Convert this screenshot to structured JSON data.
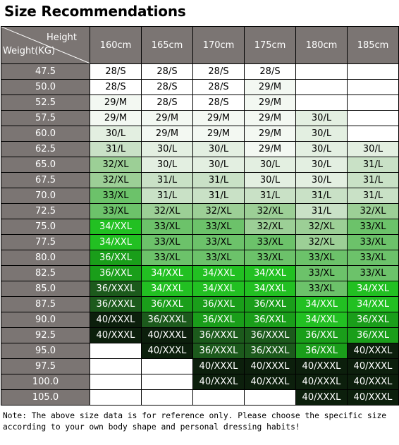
{
  "title": "Size Recommendations",
  "corner": {
    "height_label": "Height",
    "weight_label": "Weight(KG)"
  },
  "heights": [
    "160cm",
    "165cm",
    "170cm",
    "175cm",
    "180cm",
    "185cm"
  ],
  "rows": [
    {
      "weight": "47.5",
      "sizes": [
        "28/S",
        "28/S",
        "28/S",
        "28/S",
        null,
        null
      ]
    },
    {
      "weight": "50.0",
      "sizes": [
        "28/S",
        "28/S",
        "28/S",
        "29/M",
        null,
        null
      ]
    },
    {
      "weight": "52.5",
      "sizes": [
        "29/M",
        "28/S",
        "28/S",
        "29/M",
        null,
        null
      ]
    },
    {
      "weight": "57.5",
      "sizes": [
        "29/M",
        "29/M",
        "29/M",
        "29/M",
        "30/L",
        null
      ]
    },
    {
      "weight": "60.0",
      "sizes": [
        "30/L",
        "29/M",
        "29/M",
        "29/M",
        "30/L",
        null
      ]
    },
    {
      "weight": "62.5",
      "sizes": [
        "31/L",
        "30/L",
        "30/L",
        "29/M",
        "30/L",
        "30/L"
      ]
    },
    {
      "weight": "65.0",
      "sizes": [
        "32/XL",
        "30/L",
        "30/L",
        "30/L",
        "30/L",
        "31/L"
      ]
    },
    {
      "weight": "67.5",
      "sizes": [
        "32/XL",
        "31/L",
        "31/L",
        "30/L",
        "30/L",
        "31/L"
      ]
    },
    {
      "weight": "70.0",
      "sizes": [
        "33/XL",
        "31/L",
        "31/L",
        "31/L",
        "31/L",
        "31/L"
      ]
    },
    {
      "weight": "72.5",
      "sizes": [
        "33/XL",
        "32/XL",
        "32/XL",
        "32/XL",
        "31/L",
        "32/XL"
      ]
    },
    {
      "weight": "75.0",
      "sizes": [
        "34/XXL",
        "33/XL",
        "33/XL",
        "32/XL",
        "32/XL",
        "33/XL"
      ]
    },
    {
      "weight": "77.5",
      "sizes": [
        "34/XXL",
        "33/XL",
        "33/XL",
        "33/XL",
        "32/XL",
        "33/XL"
      ]
    },
    {
      "weight": "80.0",
      "sizes": [
        "36/XXL",
        "33/XL",
        "33/XL",
        "33/XL",
        "33/XL",
        "33/XL"
      ]
    },
    {
      "weight": "82.5",
      "sizes": [
        "36/XXL",
        "34/XXL",
        "34/XXL",
        "34/XXL",
        "33/XL",
        "33/XL"
      ]
    },
    {
      "weight": "85.0",
      "sizes": [
        "36/XXXL",
        "34/XXL",
        "34/XXL",
        "34/XXL",
        "33/XL",
        "34/XXL"
      ]
    },
    {
      "weight": "87.5",
      "sizes": [
        "36/XXXL",
        "36/XXL",
        "36/XXL",
        "36/XXL",
        "34/XXL",
        "34/XXL"
      ]
    },
    {
      "weight": "90.0",
      "sizes": [
        "40/XXXL",
        "36/XXXL",
        "36/XXL",
        "36/XXL",
        "34/XXL",
        "36/XXL"
      ]
    },
    {
      "weight": "92.5",
      "sizes": [
        "40/XXXL",
        "40/XXXL",
        "36/XXXL",
        "36/XXXL",
        "36/XXL",
        "36/XXL"
      ]
    },
    {
      "weight": "95.0",
      "sizes": [
        null,
        "40/XXXL",
        "36/XXXL",
        "36/XXXL",
        "36/XXL",
        "40/XXXL"
      ]
    },
    {
      "weight": "97.5",
      "sizes": [
        null,
        null,
        "40/XXXL",
        "40/XXXL",
        "40/XXXL",
        "40/XXXL"
      ]
    },
    {
      "weight": "100.0",
      "sizes": [
        null,
        null,
        "40/XXXL",
        "40/XXXL",
        "40/XXXL",
        "40/XXXL"
      ]
    },
    {
      "weight": "105.0",
      "sizes": [
        null,
        null,
        null,
        null,
        "40/XXXL",
        "40/XXXL"
      ]
    }
  ],
  "size_colors": {
    "28/S": {
      "bg": "#ffffff",
      "fg": "#000000"
    },
    "29/M": {
      "bg": "#f3f8f2",
      "fg": "#000000"
    },
    "30/L": {
      "bg": "#e3efe1",
      "fg": "#000000"
    },
    "31/L": {
      "bg": "#c9e1c6",
      "fg": "#000000"
    },
    "32/XL": {
      "bg": "#9ccf96",
      "fg": "#000000"
    },
    "33/XL": {
      "bg": "#6cc26a",
      "fg": "#000000"
    },
    "34/XXL": {
      "bg": "#22c022",
      "fg": "#ffffff"
    },
    "36/XXL": {
      "bg": "#1a9e1a",
      "fg": "#ffffff"
    },
    "36/XXXL": {
      "bg": "#1c5a1c",
      "fg": "#ffffff"
    },
    "40/XXXL": {
      "bg": "#0c1f0c",
      "fg": "#ffffff"
    }
  },
  "header_color": "#7b7573",
  "note": "Note: The above size data is for reference only. Please choose the specific size according to your own body shape and personal dressing habits!"
}
